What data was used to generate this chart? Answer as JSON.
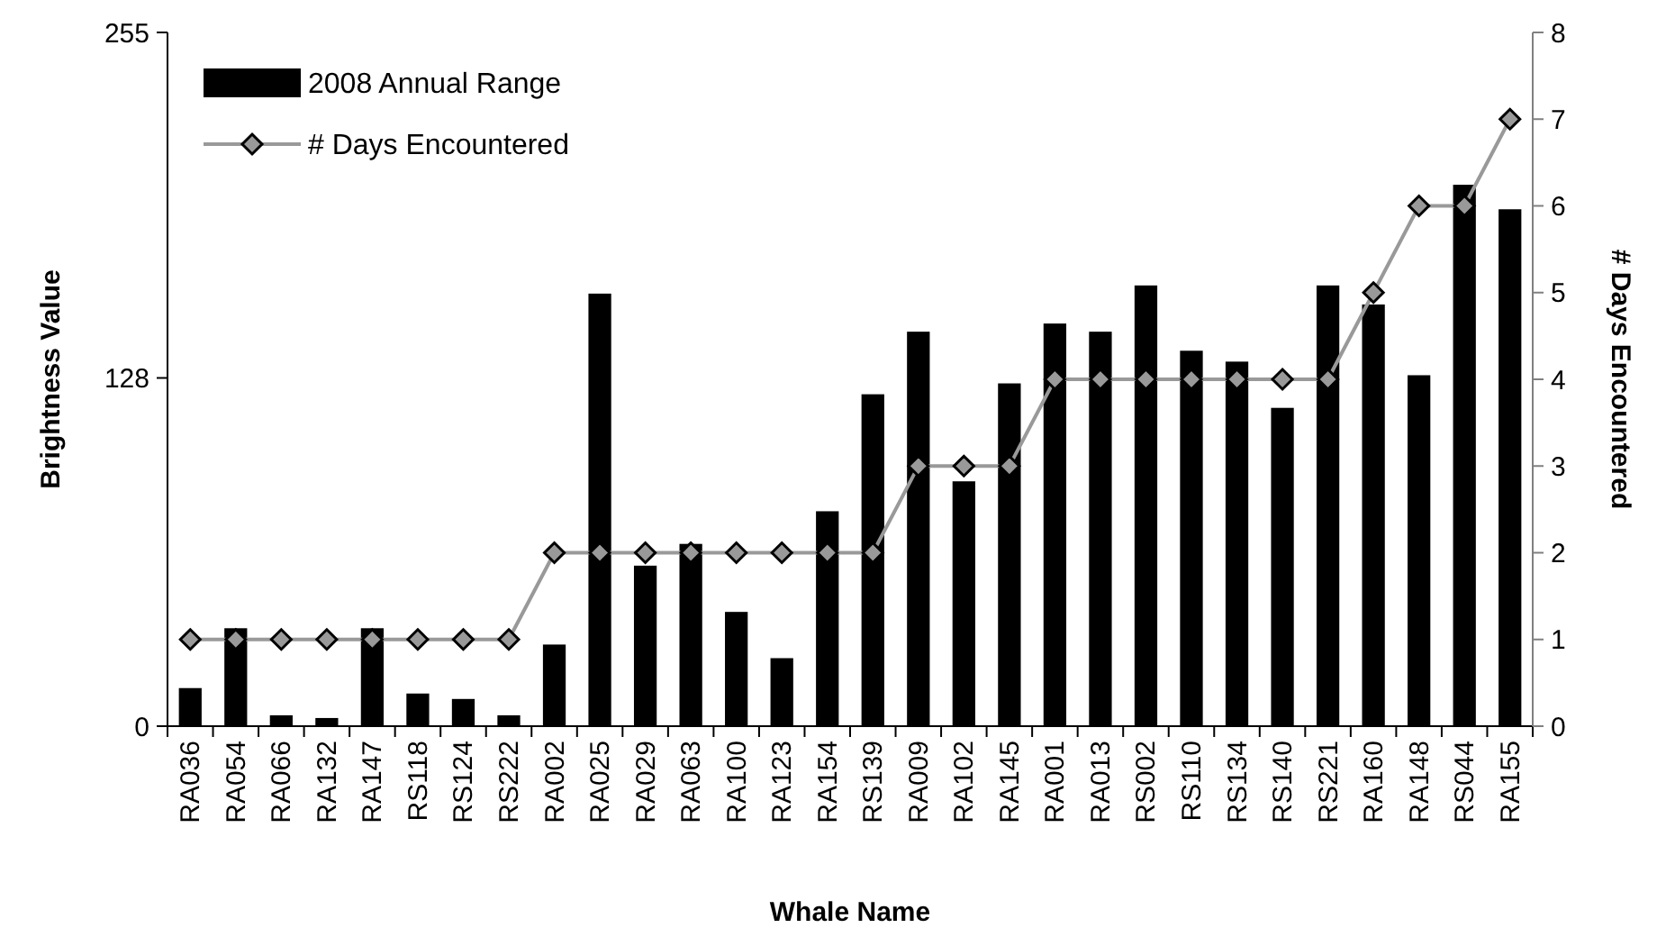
{
  "chart_data": {
    "type": "bar",
    "xlabel": "Whale Name",
    "ylabel": "Brightness Value",
    "y2label": "# Days Encountered",
    "categories": [
      "RA036",
      "RA054",
      "RA066",
      "RA132",
      "RA147",
      "RS118",
      "RS124",
      "RS222",
      "RA002",
      "RA025",
      "RA029",
      "RA063",
      "RA100",
      "RA123",
      "RA154",
      "RS139",
      "RA009",
      "RA102",
      "RA145",
      "RA001",
      "RA013",
      "RS002",
      "RS110",
      "RS134",
      "RS140",
      "RS221",
      "RA160",
      "RA148",
      "RS044",
      "RA155"
    ],
    "series": [
      {
        "name": "2008 Annual Range",
        "color": "#000000",
        "values": [
          14,
          36,
          4,
          3,
          36,
          12,
          10,
          4,
          30,
          159,
          59,
          67,
          42,
          25,
          79,
          122,
          145,
          90,
          126,
          148,
          145,
          162,
          138,
          134,
          117,
          162,
          155,
          129,
          199,
          190
        ]
      },
      {
        "name": "# Days Encountered",
        "type": "line",
        "axis": "y2",
        "color": "#999999",
        "marker": "diamond",
        "values": [
          1,
          1,
          1,
          1,
          1,
          1,
          1,
          1,
          2,
          2,
          2,
          2,
          2,
          2,
          2,
          2,
          3,
          3,
          3,
          4,
          4,
          4,
          4,
          4,
          4,
          4,
          5,
          6,
          6,
          7
        ]
      }
    ],
    "ylim": [
      0,
      255
    ],
    "yticks": [
      0,
      128,
      255
    ],
    "y2lim": [
      0,
      8
    ],
    "y2ticks": [
      0,
      1,
      2,
      3,
      4,
      5,
      6,
      7,
      8
    ],
    "grid": false,
    "legend": "top left"
  }
}
